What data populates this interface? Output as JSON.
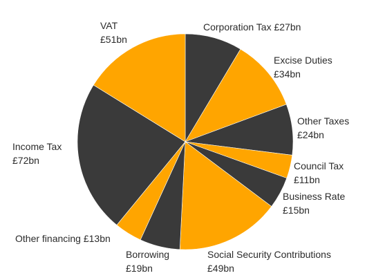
{
  "chart_data": {
    "type": "pie",
    "title": "",
    "colors": {
      "dark": "#3a3a3a",
      "orange": "#ffa500"
    },
    "slices": [
      {
        "label": "Corporation Tax",
        "amount": "£27bn",
        "value": 27,
        "color": "#3a3a3a"
      },
      {
        "label": "Excise Duties",
        "amount": "£34bn",
        "value": 34,
        "color": "#ffa500"
      },
      {
        "label": "Other Taxes",
        "amount": "£24bn",
        "value": 24,
        "color": "#3a3a3a"
      },
      {
        "label": "Council Tax",
        "amount": "£11bn",
        "value": 11,
        "color": "#ffa500"
      },
      {
        "label": "Business Rate",
        "amount": "£15bn",
        "value": 15,
        "color": "#3a3a3a"
      },
      {
        "label": "Social Security Contributions",
        "amount": "£49bn",
        "value": 49,
        "color": "#ffa500"
      },
      {
        "label": "Borrowing",
        "amount": "£19bn",
        "value": 19,
        "color": "#3a3a3a"
      },
      {
        "label": "Other financing",
        "amount": "£13bn",
        "value": 13,
        "color": "#ffa500"
      },
      {
        "label": "Income Tax",
        "amount": "£72bn",
        "value": 72,
        "color": "#3a3a3a"
      },
      {
        "label": "VAT",
        "amount": "£51bn",
        "value": 51,
        "color": "#ffa500"
      }
    ]
  }
}
